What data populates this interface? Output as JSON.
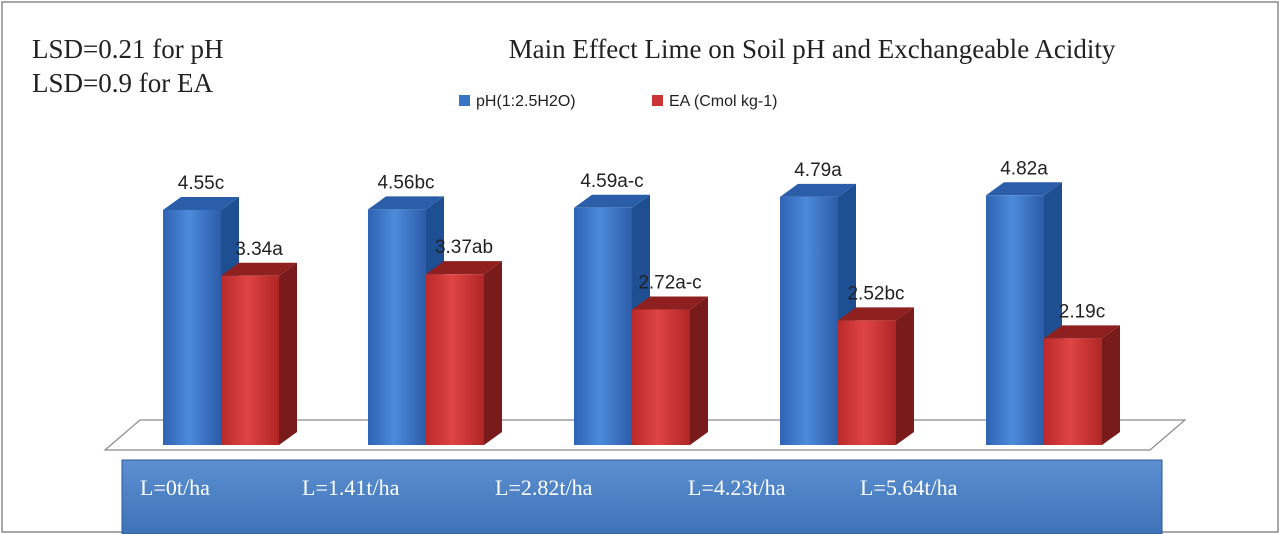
{
  "chart_data": {
    "type": "bar",
    "title": "Main Effect Lime on Soil pH and Exchangeable Acidity",
    "notes": [
      "LSD=0.21 for pH",
      "LSD=0.9 for EA"
    ],
    "categories": [
      "L=0t/ha",
      "L=1.41t/ha",
      "L=2.82t/ha",
      "L=4.23t/ha",
      "L=5.64t/ha"
    ],
    "series": [
      {
        "name": "pH(1:2.5H2O)",
        "color": "#3a74c6",
        "values": [
          4.55,
          4.56,
          4.59,
          4.79,
          4.82
        ],
        "labels": [
          "4.55c",
          "4.56bc",
          "4.59a-c",
          "4.79a",
          "4.82a"
        ]
      },
      {
        "name": "EA (Cmol kg-1)",
        "color": "#cc3333",
        "values": [
          3.34,
          3.37,
          2.72,
          2.52,
          2.19
        ],
        "labels": [
          "3.34a",
          "3.37ab",
          "2.72a-c",
          "2.52bc",
          "2.19c"
        ]
      }
    ],
    "legend_position": "top-center",
    "grid": false,
    "style": "3d-column"
  }
}
